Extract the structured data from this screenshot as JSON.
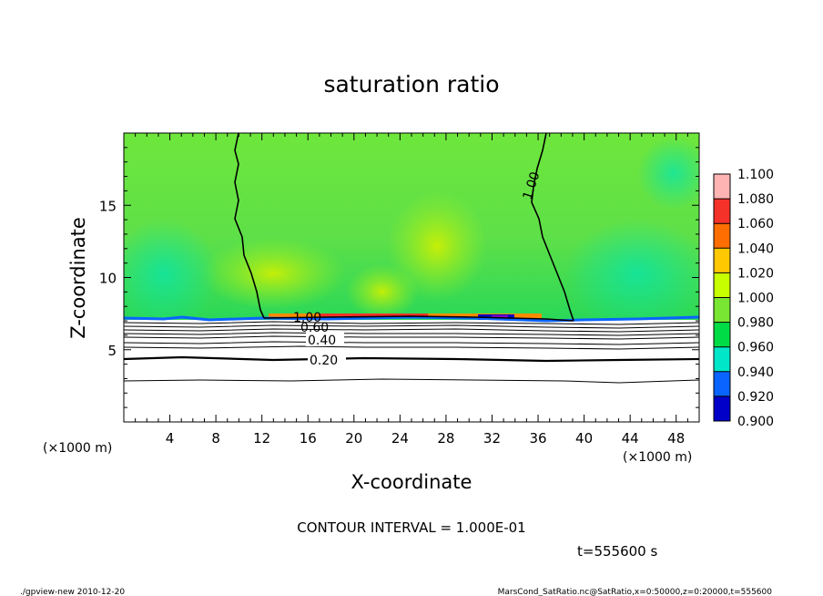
{
  "chart_data": {
    "type": "heatmap",
    "title": "saturation ratio",
    "xlabel": "X-coordinate",
    "ylabel": "Z-coordinate",
    "x_unit": "(×1000 m)",
    "z_unit": "(×1000 m)",
    "xlim": [
      0,
      50
    ],
    "ylim": [
      0,
      20
    ],
    "x_ticks": [
      "4",
      "8",
      "12",
      "16",
      "20",
      "24",
      "28",
      "32",
      "36",
      "40",
      "44",
      "48"
    ],
    "y_ticks": [
      "5",
      "10",
      "15"
    ],
    "colorbar": {
      "levels": [
        "1.100",
        "1.080",
        "1.060",
        "1.040",
        "1.020",
        "1.000",
        "0.980",
        "0.960",
        "0.940",
        "0.920",
        "0.900"
      ],
      "colors": [
        "#ffb4b4",
        "#f5322a",
        "#ff6e00",
        "#ffc800",
        "#c8ff00",
        "#78e632",
        "#00dc46",
        "#00e6c8",
        "#0a64ff",
        "#0000c8",
        "#8200c8"
      ]
    },
    "contour_labels": [
      {
        "text": "1.00",
        "x": 35.0,
        "z": 16.0
      },
      {
        "text": "1.00",
        "x": 15.5,
        "z": 7.0
      },
      {
        "text": "0.60",
        "x": 17.0,
        "z": 6.4
      },
      {
        "text": "0.40",
        "x": 17.5,
        "z": 5.6
      },
      {
        "text": "0.20",
        "x": 17.5,
        "z": 4.4
      }
    ],
    "contour_interval_text": "CONTOUR INTERVAL = 1.000E-01",
    "time_text": "t=555600 s"
  },
  "footer": {
    "left": "./gpview-new   2010-12-20",
    "right": "MarsCond_SatRatio.nc@SatRatio,x=0:50000,z=0:20000,t=555600"
  }
}
